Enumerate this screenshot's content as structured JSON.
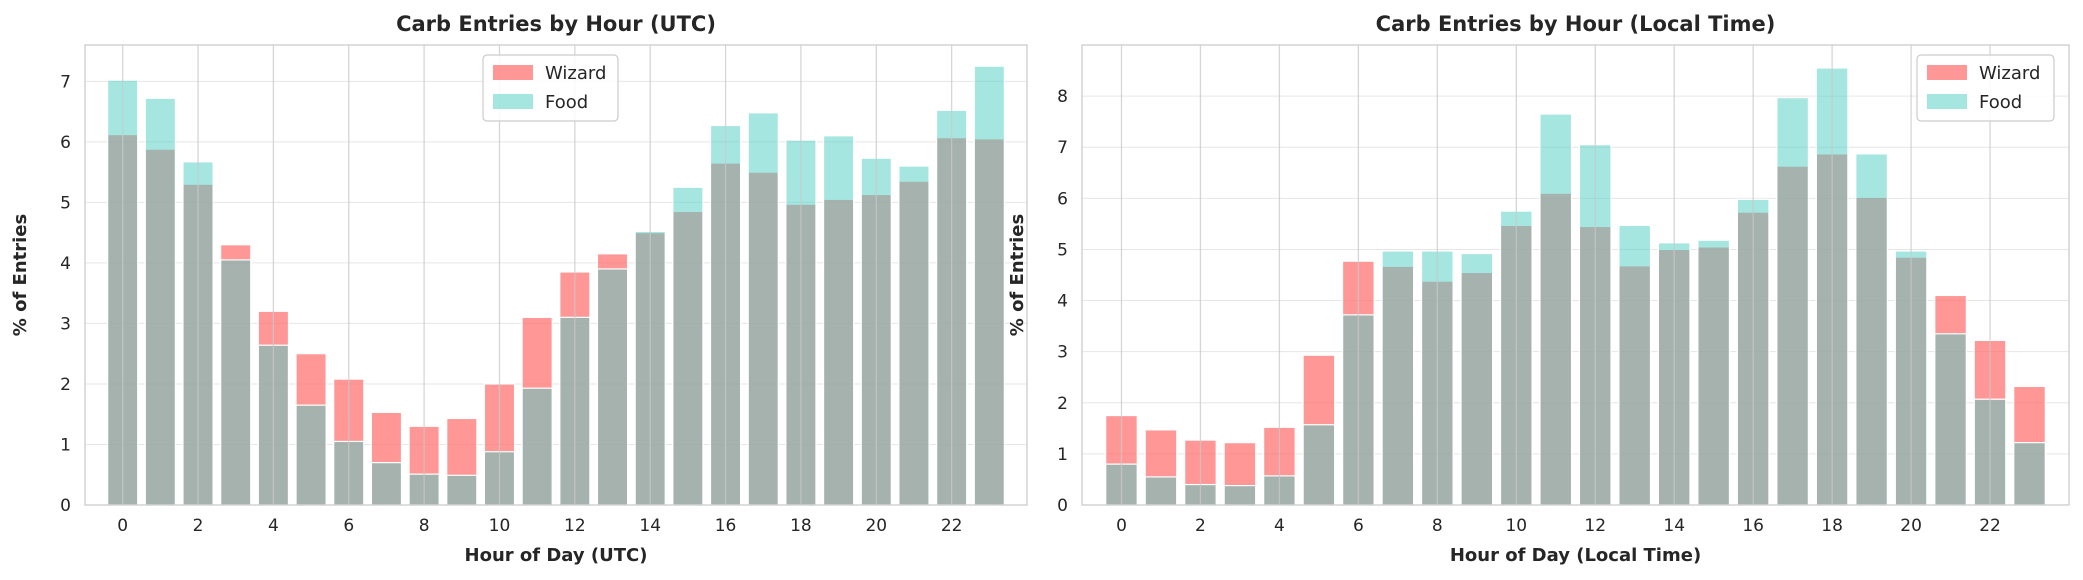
{
  "colors": {
    "wizard": "#ff6b6b",
    "food": "#4ecdc4"
  },
  "chart_data": [
    {
      "type": "bar",
      "title": "Carb Entries by Hour (UTC)",
      "xlabel": "Hour of Day (UTC)",
      "ylabel": "% of Entries",
      "x": [
        0,
        1,
        2,
        3,
        4,
        5,
        6,
        7,
        8,
        9,
        10,
        11,
        12,
        13,
        14,
        15,
        16,
        17,
        18,
        19,
        20,
        21,
        22,
        23
      ],
      "xticks": [
        "0",
        "2",
        "4",
        "6",
        "8",
        "10",
        "12",
        "14",
        "16",
        "18",
        "20",
        "22"
      ],
      "yticks": [
        "0",
        "1",
        "2",
        "3",
        "4",
        "5",
        "6",
        "7"
      ],
      "ylim": [
        0,
        7.6
      ],
      "grid": true,
      "legend_position": "top-center",
      "series": [
        {
          "name": "Wizard",
          "color": "#ff6b6b",
          "values": [
            6.12,
            5.88,
            5.3,
            4.3,
            3.2,
            2.5,
            2.08,
            1.53,
            1.3,
            1.43,
            2.0,
            3.1,
            3.85,
            4.15,
            4.5,
            4.85,
            5.65,
            5.5,
            4.97,
            5.05,
            5.13,
            5.35,
            6.07,
            6.05
          ]
        },
        {
          "name": "Food",
          "color": "#4ecdc4",
          "values": [
            7.02,
            6.72,
            5.67,
            4.05,
            2.64,
            1.65,
            1.05,
            0.7,
            0.51,
            0.49,
            0.88,
            1.93,
            3.1,
            3.9,
            4.52,
            5.25,
            6.27,
            6.48,
            6.03,
            6.1,
            5.73,
            5.6,
            6.52,
            7.25
          ]
        }
      ]
    },
    {
      "type": "bar",
      "title": "Carb Entries by Hour (Local Time)",
      "xlabel": "Hour of Day (Local Time)",
      "ylabel": "% of Entries",
      "x": [
        0,
        1,
        2,
        3,
        4,
        5,
        6,
        7,
        8,
        9,
        10,
        11,
        12,
        13,
        14,
        15,
        16,
        17,
        18,
        19,
        20,
        21,
        22,
        23
      ],
      "xticks": [
        "0",
        "2",
        "4",
        "6",
        "8",
        "10",
        "12",
        "14",
        "16",
        "18",
        "20",
        "22"
      ],
      "yticks": [
        "0",
        "1",
        "2",
        "3",
        "4",
        "5",
        "6",
        "7",
        "8"
      ],
      "ylim": [
        0,
        9.0
      ],
      "grid": true,
      "legend_position": "top-right",
      "series": [
        {
          "name": "Wizard",
          "color": "#ff6b6b",
          "values": [
            1.75,
            1.47,
            1.27,
            1.22,
            1.52,
            2.93,
            4.77,
            4.67,
            4.38,
            4.55,
            5.47,
            6.1,
            5.45,
            4.68,
            5.0,
            5.05,
            5.73,
            6.63,
            6.87,
            6.02,
            4.85,
            4.1,
            3.22,
            2.32
          ]
        },
        {
          "name": "Food",
          "color": "#4ecdc4",
          "values": [
            0.8,
            0.55,
            0.4,
            0.38,
            0.57,
            1.57,
            3.72,
            4.97,
            4.97,
            4.92,
            5.75,
            7.65,
            7.05,
            5.47,
            5.13,
            5.18,
            5.98,
            7.97,
            8.55,
            6.87,
            4.97,
            3.35,
            2.07,
            1.22
          ]
        }
      ]
    }
  ]
}
